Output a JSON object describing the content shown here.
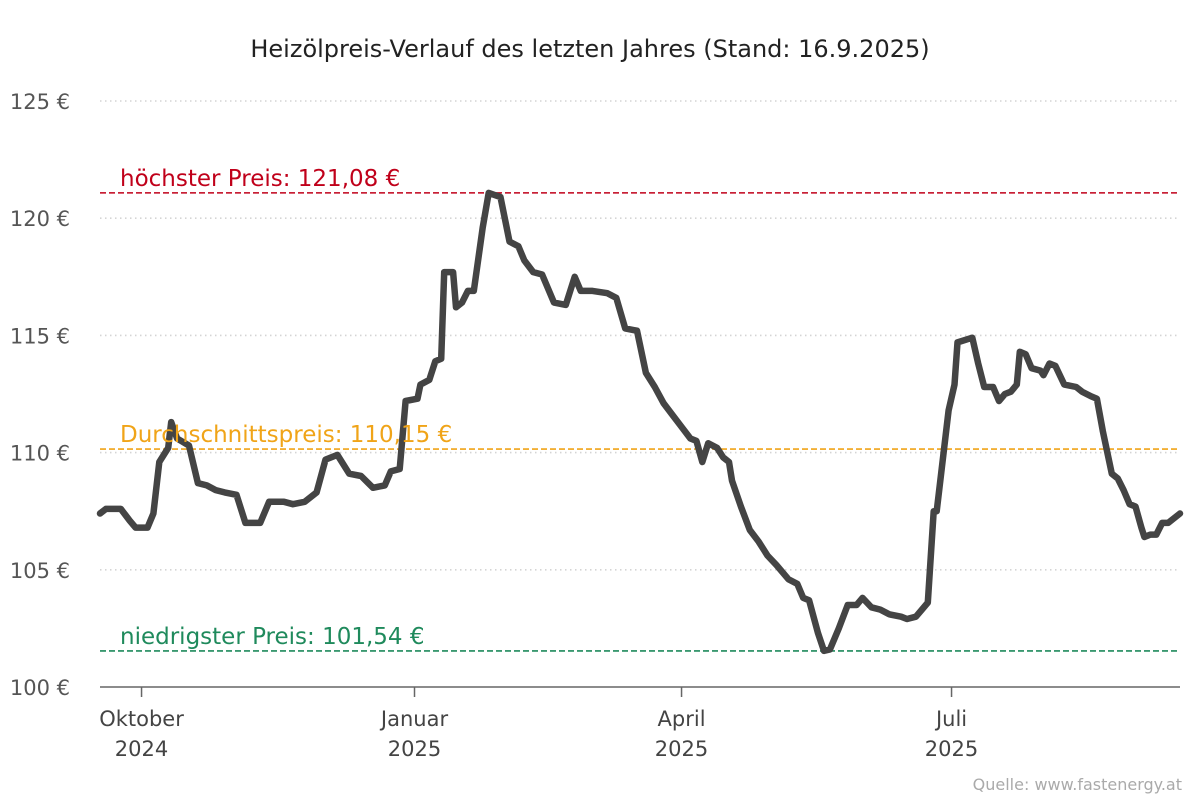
{
  "chart_data": {
    "type": "line",
    "title": "Heizölpreis-Verlauf des letzten Jahres (Stand: 16.9.2025)",
    "source": "Quelle: www.fastenergy.at",
    "ylim": [
      100,
      125
    ],
    "yticks": [
      100,
      105,
      110,
      115,
      120,
      125
    ],
    "ytick_labels": [
      "100 €",
      "105 €",
      "110 €",
      "115 €",
      "120 €",
      "125 €"
    ],
    "grid": "horizontal dotted",
    "xlim": [
      "2024-09-17",
      "2025-09-16"
    ],
    "xticks": [
      {
        "date": "2024-10-01",
        "line1": "Oktober",
        "line2": "2024"
      },
      {
        "date": "2025-01-01",
        "line1": "Januar",
        "line2": "2025"
      },
      {
        "date": "2025-04-01",
        "line1": "April",
        "line2": "2025"
      },
      {
        "date": "2025-07-01",
        "line1": "Juli",
        "line2": "2025"
      }
    ],
    "reference_lines": [
      {
        "label": "höchster Preis: 121,08 €",
        "value": 121.08,
        "color": "#c0001a"
      },
      {
        "label": "Durchschnittspreis: 110,15 €",
        "value": 110.15,
        "color": "#f0a418"
      },
      {
        "label": "niedrigster Preis: 101,54 €",
        "value": 101.54,
        "color": "#1f8a5c"
      }
    ],
    "series": [
      {
        "color": "#444444",
        "points": [
          [
            "2024-09-17",
            107.4
          ],
          [
            "2024-09-19",
            107.6
          ],
          [
            "2024-09-24",
            107.6
          ],
          [
            "2024-09-27",
            107.1
          ],
          [
            "2024-09-29",
            106.8
          ],
          [
            "2024-10-03",
            106.8
          ],
          [
            "2024-10-05",
            107.4
          ],
          [
            "2024-10-07",
            109.6
          ],
          [
            "2024-10-10",
            110.2
          ],
          [
            "2024-10-11",
            111.3
          ],
          [
            "2024-10-13",
            110.6
          ],
          [
            "2024-10-17",
            110.3
          ],
          [
            "2024-10-20",
            108.7
          ],
          [
            "2024-10-23",
            108.6
          ],
          [
            "2024-10-26",
            108.4
          ],
          [
            "2024-10-29",
            108.3
          ],
          [
            "2024-11-02",
            108.2
          ],
          [
            "2024-11-05",
            107.0
          ],
          [
            "2024-11-10",
            107.0
          ],
          [
            "2024-11-13",
            107.9
          ],
          [
            "2024-11-18",
            107.9
          ],
          [
            "2024-11-21",
            107.8
          ],
          [
            "2024-11-25",
            107.9
          ],
          [
            "2024-11-29",
            108.3
          ],
          [
            "2024-12-02",
            109.7
          ],
          [
            "2024-12-06",
            109.9
          ],
          [
            "2024-12-10",
            109.1
          ],
          [
            "2024-12-14",
            109.0
          ],
          [
            "2024-12-18",
            108.5
          ],
          [
            "2024-12-22",
            108.6
          ],
          [
            "2024-12-24",
            109.2
          ],
          [
            "2024-12-27",
            109.3
          ],
          [
            "2024-12-29",
            112.2
          ],
          [
            "2025-01-02",
            112.3
          ],
          [
            "2025-01-03",
            112.9
          ],
          [
            "2025-01-06",
            113.1
          ],
          [
            "2025-01-08",
            113.9
          ],
          [
            "2025-01-10",
            114.0
          ],
          [
            "2025-01-11",
            117.7
          ],
          [
            "2025-01-14",
            117.7
          ],
          [
            "2025-01-15",
            116.2
          ],
          [
            "2025-01-17",
            116.4
          ],
          [
            "2025-01-19",
            116.9
          ],
          [
            "2025-01-21",
            116.9
          ],
          [
            "2025-01-24",
            119.6
          ],
          [
            "2025-01-26",
            121.08
          ],
          [
            "2025-01-30",
            120.9
          ],
          [
            "2025-02-02",
            119.0
          ],
          [
            "2025-02-05",
            118.8
          ],
          [
            "2025-02-07",
            118.2
          ],
          [
            "2025-02-10",
            117.7
          ],
          [
            "2025-02-13",
            117.6
          ],
          [
            "2025-02-17",
            116.4
          ],
          [
            "2025-02-21",
            116.3
          ],
          [
            "2025-02-24",
            117.5
          ],
          [
            "2025-02-26",
            116.9
          ],
          [
            "2025-03-02",
            116.9
          ],
          [
            "2025-03-07",
            116.8
          ],
          [
            "2025-03-10",
            116.6
          ],
          [
            "2025-03-13",
            115.3
          ],
          [
            "2025-03-17",
            115.2
          ],
          [
            "2025-03-20",
            113.4
          ],
          [
            "2025-03-23",
            112.8
          ],
          [
            "2025-03-26",
            112.1
          ],
          [
            "2025-03-29",
            111.6
          ],
          [
            "2025-04-01",
            111.1
          ],
          [
            "2025-04-04",
            110.6
          ],
          [
            "2025-04-06",
            110.5
          ],
          [
            "2025-04-08",
            109.6
          ],
          [
            "2025-04-10",
            110.4
          ],
          [
            "2025-04-13",
            110.2
          ],
          [
            "2025-04-15",
            109.8
          ],
          [
            "2025-04-17",
            109.6
          ],
          [
            "2025-04-18",
            108.8
          ],
          [
            "2025-04-21",
            107.7
          ],
          [
            "2025-04-24",
            106.7
          ],
          [
            "2025-04-27",
            106.2
          ],
          [
            "2025-04-30",
            105.6
          ],
          [
            "2025-05-03",
            105.2
          ],
          [
            "2025-05-07",
            104.6
          ],
          [
            "2025-05-10",
            104.4
          ],
          [
            "2025-05-12",
            103.8
          ],
          [
            "2025-05-14",
            103.7
          ],
          [
            "2025-05-17",
            102.3
          ],
          [
            "2025-05-19",
            101.54
          ],
          [
            "2025-05-21",
            101.6
          ],
          [
            "2025-05-24",
            102.5
          ],
          [
            "2025-05-27",
            103.5
          ],
          [
            "2025-05-30",
            103.5
          ],
          [
            "2025-06-01",
            103.8
          ],
          [
            "2025-06-04",
            103.4
          ],
          [
            "2025-06-07",
            103.3
          ],
          [
            "2025-06-10",
            103.1
          ],
          [
            "2025-06-14",
            103.0
          ],
          [
            "2025-06-16",
            102.9
          ],
          [
            "2025-06-19",
            103.0
          ],
          [
            "2025-06-21",
            103.3
          ],
          [
            "2025-06-23",
            103.6
          ],
          [
            "2025-06-25",
            107.5
          ],
          [
            "2025-06-26",
            107.5
          ],
          [
            "2025-06-30",
            111.8
          ],
          [
            "2025-07-02",
            112.9
          ],
          [
            "2025-07-03",
            114.7
          ],
          [
            "2025-07-08",
            114.9
          ],
          [
            "2025-07-10",
            113.8
          ],
          [
            "2025-07-12",
            112.8
          ],
          [
            "2025-07-15",
            112.8
          ],
          [
            "2025-07-17",
            112.2
          ],
          [
            "2025-07-19",
            112.5
          ],
          [
            "2025-07-21",
            112.6
          ],
          [
            "2025-07-23",
            112.9
          ],
          [
            "2025-07-24",
            114.3
          ],
          [
            "2025-07-26",
            114.2
          ],
          [
            "2025-07-28",
            113.6
          ],
          [
            "2025-07-31",
            113.5
          ],
          [
            "2025-08-01",
            113.3
          ],
          [
            "2025-08-03",
            113.8
          ],
          [
            "2025-08-05",
            113.7
          ],
          [
            "2025-08-08",
            112.9
          ],
          [
            "2025-08-12",
            112.8
          ],
          [
            "2025-08-14",
            112.6
          ],
          [
            "2025-08-17",
            112.4
          ],
          [
            "2025-08-19",
            112.3
          ],
          [
            "2025-08-21",
            110.9
          ],
          [
            "2025-08-24",
            109.1
          ],
          [
            "2025-08-26",
            108.9
          ],
          [
            "2025-08-28",
            108.4
          ],
          [
            "2025-08-30",
            107.8
          ],
          [
            "2025-09-01",
            107.7
          ],
          [
            "2025-09-03",
            106.8
          ],
          [
            "2025-09-04",
            106.4
          ],
          [
            "2025-09-06",
            106.5
          ],
          [
            "2025-09-08",
            106.5
          ],
          [
            "2025-09-10",
            107.0
          ],
          [
            "2025-09-12",
            107.0
          ],
          [
            "2025-09-16",
            107.4
          ]
        ]
      }
    ]
  }
}
